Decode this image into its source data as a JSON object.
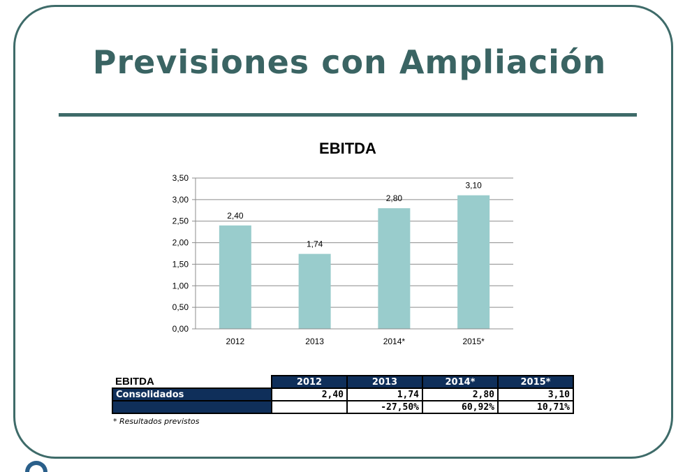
{
  "slide": {
    "title": "Previsiones con Ampliación",
    "footnote": "* Resultados previstos"
  },
  "colors": {
    "frame": "#3e6b69",
    "title": "#3a6463",
    "bar": "#99cccc",
    "table_header": "#0f2f5a"
  },
  "chart_data": {
    "type": "bar",
    "title": "EBITDA",
    "categories": [
      "2012",
      "2013",
      "2014*",
      "2015*"
    ],
    "values": [
      2.4,
      1.74,
      2.8,
      3.1
    ],
    "value_labels": [
      "2,40",
      "1,74",
      "2,80",
      "3,10"
    ],
    "y_ticks": [
      "0,00",
      "0,50",
      "1,00",
      "1,50",
      "2,00",
      "2,50",
      "3,00",
      "3,50"
    ],
    "ylim": [
      0,
      3.5
    ],
    "xlabel": "",
    "ylabel": "",
    "grid": true,
    "legend": "none"
  },
  "table": {
    "header_label": "EBITDA",
    "years": [
      "2012",
      "2013",
      "2014*",
      "2015*"
    ],
    "rows": [
      {
        "label": "Consolidados",
        "values": [
          "2,40",
          "1,74",
          "2,80",
          "3,10"
        ]
      },
      {
        "label": "",
        "values": [
          "",
          "-27,50%",
          "60,92%",
          "10,71%"
        ]
      }
    ]
  }
}
